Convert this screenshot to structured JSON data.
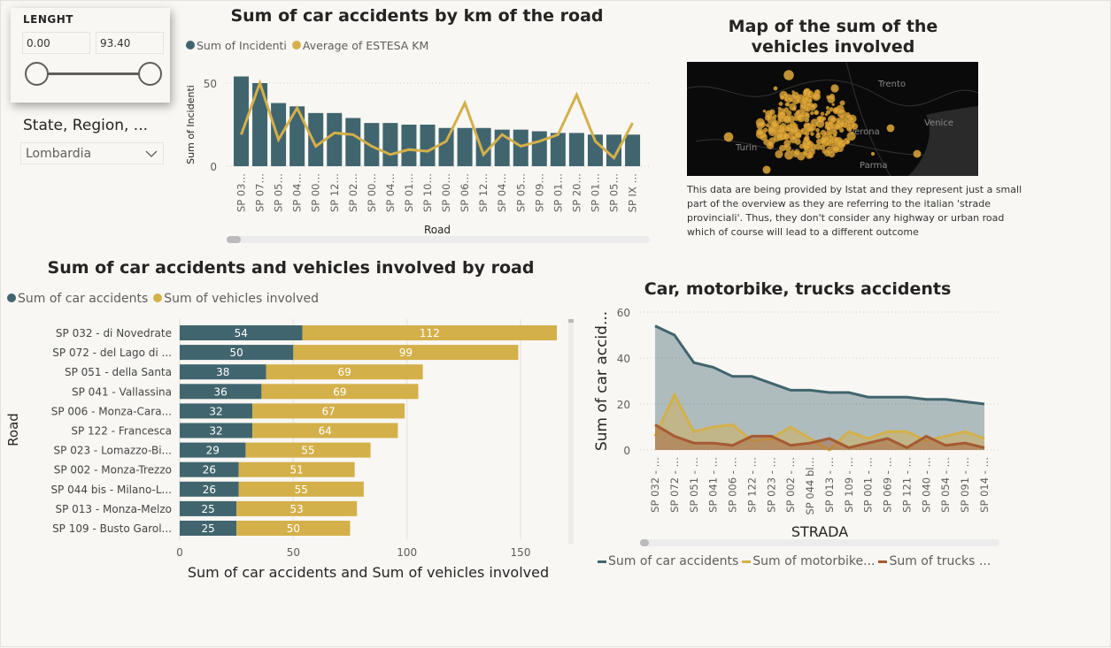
{
  "slicer_length": {
    "title": "LENGHT",
    "min_value": "0.00",
    "max_value": "93.40",
    "range": [
      0.0,
      93.4
    ]
  },
  "slicer_region": {
    "title": "State, Region, ...",
    "selected": "Lombardia"
  },
  "colors": {
    "teal": "#41656e",
    "gold": "#d4b04a",
    "brown": "#a65a33",
    "map_bg": "#0a0a0a"
  },
  "map": {
    "title_line1": "Map of the sum of the",
    "title_line2": "vehicles involved",
    "cities": [
      "Trento",
      "Verona",
      "Venice",
      "Turin",
      "Parma"
    ],
    "description": "This data are being provided by Istat and they represent just a small part of the overview as they are referring to the italian 'strade provinciali'. Thus, they don't consider any highway or urban road which of course will lead to a different outcome"
  },
  "chart_data": [
    {
      "type": "bar+line",
      "title": "Sum of car accidents by km of the road",
      "xlabel": "Road",
      "ylabel": "Sum of Incidenti",
      "yticks": [
        "0",
        "50"
      ],
      "ylim": [
        0,
        58
      ],
      "grid": true,
      "legend": "top-left",
      "categories": [
        "SP 03…",
        "SP 07…",
        "SP 05…",
        "SP 04…",
        "SP 00…",
        "SP 12…",
        "SP 02…",
        "SP 00…",
        "SP 04…",
        "SP 01…",
        "SP 10…",
        "SP 00…",
        "SP 06…",
        "SP 12…",
        "SP 04…",
        "SP 05…",
        "SP 09…",
        "SP 01…",
        "SP 20…",
        "SP 01…",
        "SP 05…",
        "SP IX …"
      ],
      "series": [
        {
          "name": "Sum of Incidenti",
          "type": "bar",
          "values": [
            54,
            50,
            38,
            36,
            32,
            32,
            29,
            26,
            26,
            25,
            25,
            23,
            23,
            23,
            22,
            22,
            21,
            20,
            20,
            19,
            19,
            19
          ]
        },
        {
          "name": "Average of ESTESA KM",
          "type": "line",
          "values": [
            19,
            50,
            16,
            35,
            12,
            20,
            19,
            12,
            7,
            10,
            9,
            15,
            38,
            7,
            19,
            12,
            15,
            19,
            43,
            15,
            5,
            26
          ]
        }
      ]
    },
    {
      "type": "stacked-bar-horizontal",
      "title": "Sum of car accidents and vehicles involved by road",
      "xlabel": "Sum of car accidents and Sum of vehicles involved",
      "ylabel": "Road",
      "xticks": [
        "0",
        "50",
        "100",
        "150"
      ],
      "xlim": [
        0,
        170
      ],
      "legend": "top-left",
      "categories": [
        "SP 032 - di Novedrate",
        "SP 072 - del Lago di ...",
        "SP 051 - della Santa",
        "SP 041 - Vallassina",
        "SP 006 - Monza-Cara...",
        "SP 122 - Francesca",
        "SP 023 - Lomazzo-Bi...",
        "SP 002 - Monza-Trezzo",
        "SP 044 bis - Milano-L...",
        "SP 013 - Monza-Melzo",
        "SP 109 - Busto Garol..."
      ],
      "series": [
        {
          "name": "Sum of car accidents",
          "values": [
            54,
            50,
            38,
            36,
            32,
            32,
            29,
            26,
            26,
            25,
            25
          ]
        },
        {
          "name": "Sum of vehicles involved",
          "values": [
            112,
            99,
            69,
            69,
            67,
            64,
            55,
            51,
            55,
            53,
            50
          ]
        }
      ]
    },
    {
      "type": "area",
      "title": "Car, motorbike, trucks accidents",
      "xlabel": "STRADA",
      "ylabel": "Sum of car accid...",
      "yticks": [
        "0",
        "20",
        "40",
        "60"
      ],
      "ylim": [
        0,
        60
      ],
      "grid": true,
      "legend": "bottom",
      "categories": [
        "SP 032 - …",
        "SP 072 - …",
        "SP 051 - …",
        "SP 041 - …",
        "SP 006 - …",
        "SP 122 - …",
        "SP 023 - …",
        "SP 002 - …",
        "SP 044 bl…",
        "SP 013 - …",
        "SP 109 - …",
        "SP 001 - …",
        "SP 069 - …",
        "SP 121 - …",
        "SP 040 - …",
        "SP 054 - …",
        "SP 091 - …",
        "SP 014 - …"
      ],
      "series": [
        {
          "name": "Sum of car accidents",
          "legend_label": "Sum of car accidents",
          "values": [
            54,
            50,
            38,
            36,
            32,
            32,
            29,
            26,
            26,
            25,
            25,
            23,
            23,
            23,
            22,
            22,
            21,
            20
          ]
        },
        {
          "name": "Sum of motorbike...",
          "legend_label": "Sum of motorbike...",
          "values": [
            6,
            24,
            8,
            10,
            11,
            4,
            5,
            10,
            5,
            0,
            8,
            5,
            8,
            8,
            4,
            6,
            8,
            5
          ]
        },
        {
          "name": "Sum of trucks ...",
          "legend_label": "Sum of trucks ...",
          "values": [
            11,
            6,
            3,
            3,
            2,
            6,
            6,
            2,
            3,
            5,
            1,
            3,
            5,
            1,
            6,
            2,
            3,
            1
          ]
        }
      ]
    }
  ]
}
